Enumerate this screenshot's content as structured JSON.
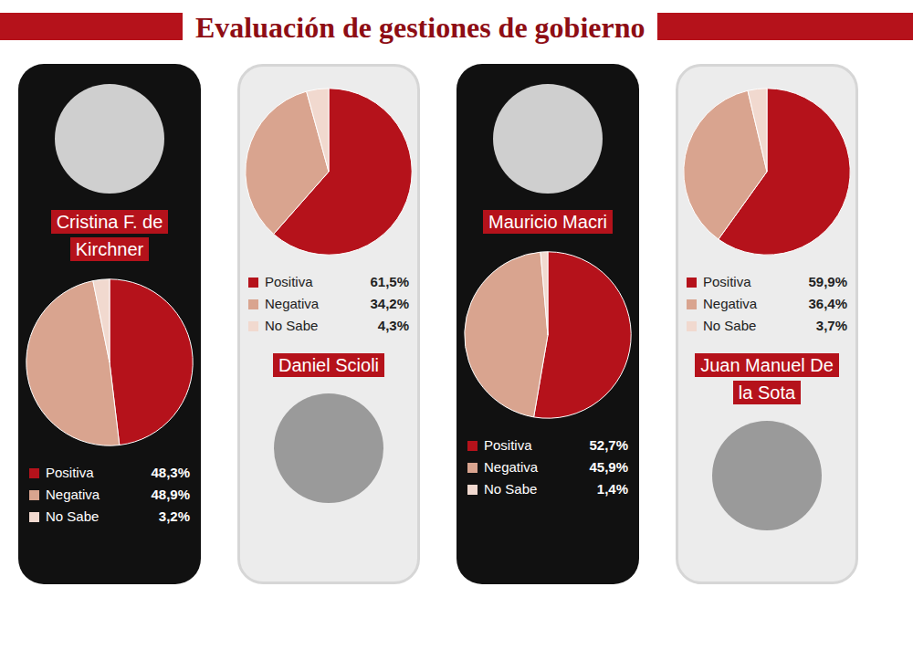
{
  "title": "Evaluación de gestiones de gobierno",
  "chart_data": [
    {
      "type": "pie",
      "title": "Cristina F. de Kirchner",
      "categories": [
        "Positiva",
        "Negativa",
        "No Sabe"
      ],
      "values": [
        48.3,
        48.9,
        3.2
      ],
      "value_labels": [
        "48,3%",
        "48,9%",
        "3,2%"
      ],
      "colors": [
        "#b5121b",
        "#d9a48f",
        "#f1d9cf"
      ],
      "legend": "bottom"
    },
    {
      "type": "pie",
      "title": "Daniel Scioli",
      "categories": [
        "Positiva",
        "Negativa",
        "No Sabe"
      ],
      "values": [
        61.5,
        34.2,
        4.3
      ],
      "value_labels": [
        "61,5%",
        "34,2%",
        "4,3%"
      ],
      "colors": [
        "#b5121b",
        "#d9a48f",
        "#f1d9cf"
      ],
      "legend": "bottom"
    },
    {
      "type": "pie",
      "title": "Mauricio Macri",
      "categories": [
        "Positiva",
        "Negativa",
        "No Sabe"
      ],
      "values": [
        52.7,
        45.9,
        1.4
      ],
      "value_labels": [
        "52,7%",
        "45,9%",
        "1,4%"
      ],
      "colors": [
        "#b5121b",
        "#d9a48f",
        "#f1d9cf"
      ],
      "legend": "bottom"
    },
    {
      "type": "pie",
      "title": "Juan Manuel De la Sota",
      "categories": [
        "Positiva",
        "Negativa",
        "No Sabe"
      ],
      "values": [
        59.9,
        36.4,
        3.7
      ],
      "value_labels": [
        "59,9%",
        "36,4%",
        "3,7%"
      ],
      "colors": [
        "#b5121b",
        "#d9a48f",
        "#f1d9cf"
      ],
      "legend": "bottom"
    }
  ]
}
